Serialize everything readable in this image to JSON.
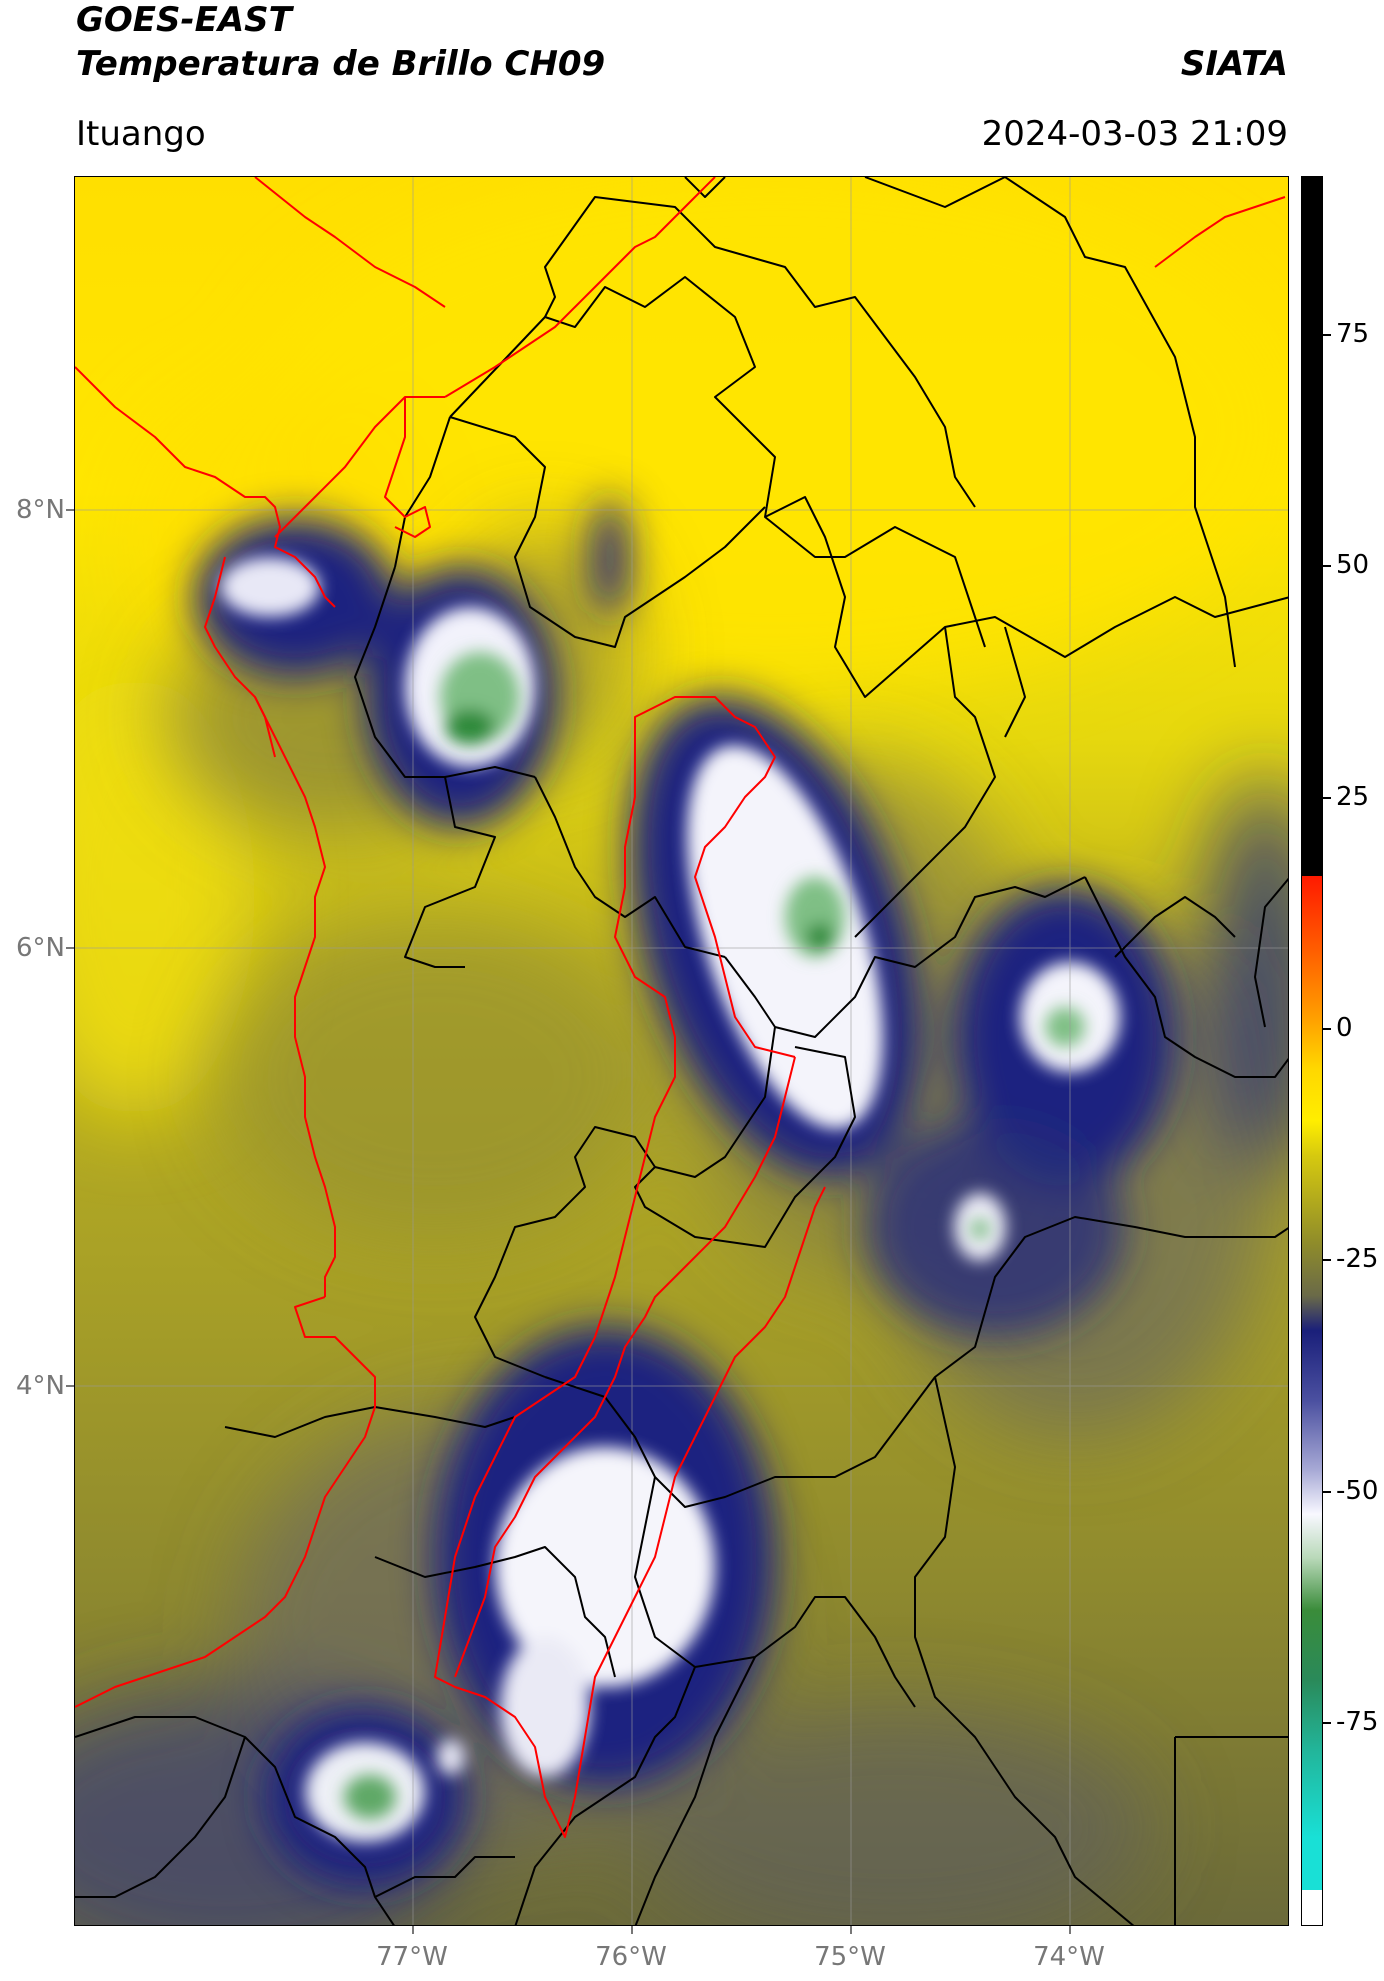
{
  "header": {
    "title_line1": "GOES-EAST",
    "title_line2": "Temperatura de Brillo CH09",
    "agency": "SIATA",
    "location": "Ituango",
    "datetime": "2024-03-03 21:09"
  },
  "map": {
    "lat_labels": [
      "8°N",
      "6°N",
      "4°N"
    ],
    "lon_labels": [
      "77°W",
      "76°W",
      "75°W",
      "74°W"
    ],
    "gridlines": true,
    "border_colors": {
      "department": "#000000",
      "region": "#ff0000"
    },
    "cold_clouds": [
      {
        "name": "northwest-coast-cell",
        "lon": -77.6,
        "lat": 7.7
      },
      {
        "name": "uraba-cell",
        "lon": -76.8,
        "lat": 7.25
      },
      {
        "name": "antioquia-magdalena-cell",
        "lon": -75.2,
        "lat": 5.7
      },
      {
        "name": "boyaca-cell",
        "lon": -74.1,
        "lat": 5.7
      },
      {
        "name": "small-east-cell",
        "lon": -74.4,
        "lat": 4.8
      },
      {
        "name": "valle-cell",
        "lon": -76.4,
        "lat": 3.0
      },
      {
        "name": "cauca-cell",
        "lon": -77.2,
        "lat": 2.1
      }
    ]
  },
  "colorbar": {
    "ticks": [
      "75",
      "50",
      "25",
      "0",
      "-25",
      "-50",
      "-75"
    ],
    "range": [
      -93,
      90
    ],
    "colors": {
      "top": "#000000",
      "red": "#ff1a00",
      "orange": "#ff8c00",
      "yellow": "#ffee00",
      "olive": "#8f8c2a",
      "navy": "#1a1f7a",
      "white": "#f8f8ff",
      "green": "#3a8c3a",
      "cyan": "#19e0d6"
    }
  }
}
